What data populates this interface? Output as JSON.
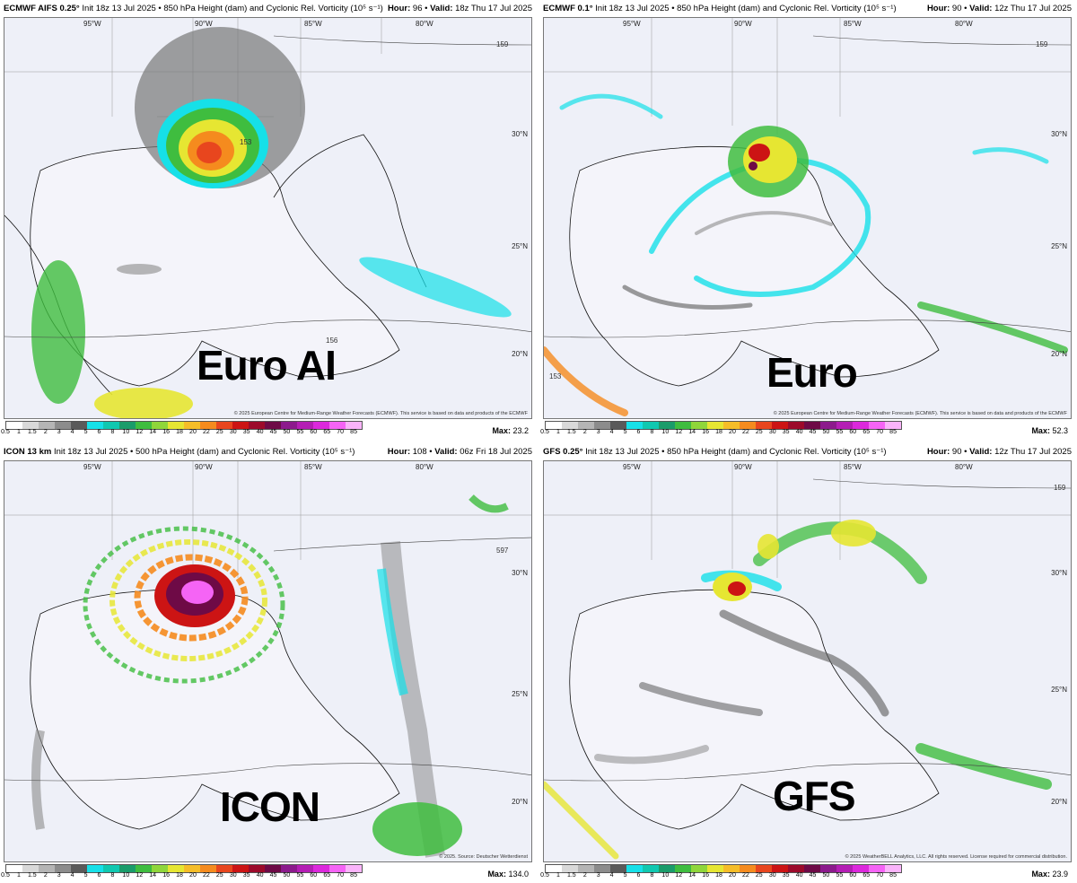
{
  "colors": {
    "land": "#eef0f8",
    "state_lines": "#888888",
    "coast": "#111111",
    "contour": "#444444",
    "colorbar": [
      "#ffffff",
      "#d9d9d9",
      "#b5b5b5",
      "#8c8c8c",
      "#5a5a5a",
      "#16e0e8",
      "#10c8b0",
      "#1a9c6a",
      "#3fbd3f",
      "#8fd63a",
      "#e6e632",
      "#f5bd28",
      "#f58b1e",
      "#e8461e",
      "#cc1414",
      "#9c0a2a",
      "#6e0a46",
      "#8c1a8c",
      "#b41eb4",
      "#dc28dc",
      "#f564f5",
      "#fab4fa"
    ]
  },
  "legend": {
    "ticks": [
      "0.5",
      "1",
      "1.5",
      "2",
      "3",
      "4",
      "5",
      "6",
      "8",
      "10",
      "12",
      "14",
      "16",
      "18",
      "20",
      "22",
      "25",
      "30",
      "35",
      "40",
      "45",
      "50",
      "55",
      "60",
      "65",
      "70",
      "85"
    ]
  },
  "panels": [
    {
      "id": "euro-ai",
      "model": "ECMWF AIFS 0.25°",
      "init_desc": "Init 18z 13 Jul 2025 • 850 hPa Height (dam) and Cyclonic Rel. Vorticity (10⁵ s⁻¹)",
      "hour_label": "Hour:",
      "hour": "96",
      "valid_label": "Valid:",
      "valid": "18z Thu 17 Jul 2025",
      "big_label": "Euro AI",
      "max_label": "Max:",
      "max": "23.2",
      "credit": "© 2025 European Centre for Medium-Range Weather Forecasts (ECMWF). This service is based on data and products of the ECMWF",
      "contours": [
        "159",
        "156",
        "153"
      ],
      "lats": [
        "30°N",
        "25°N",
        "20°N"
      ],
      "lons": [
        "95°W",
        "90°W",
        "85°W",
        "80°W"
      ]
    },
    {
      "id": "euro",
      "model": "ECMWF 0.1°",
      "init_desc": "Init 18z 13 Jul 2025 • 850 hPa Height (dam) and Cyclonic Rel. Vorticity (10⁵ s⁻¹)",
      "hour_label": "Hour:",
      "hour": "90",
      "valid_label": "Valid:",
      "valid": "12z Thu 17 Jul 2025",
      "big_label": "Euro",
      "max_label": "Max:",
      "max": "52.3",
      "credit": "© 2025 European Centre for Medium-Range Weather Forecasts (ECMWF). This service is based on data and products of the ECMWF",
      "contours": [
        "159",
        "153"
      ],
      "lats": [
        "30°N",
        "25°N",
        "20°N"
      ],
      "lons": [
        "95°W",
        "90°W",
        "85°W",
        "80°W"
      ]
    },
    {
      "id": "icon",
      "model": "ICON 13 km",
      "init_desc": "Init 18z 13 Jul 2025 • 500 hPa Height (dam) and Cyclonic Rel. Vorticity (10⁵ s⁻¹)",
      "hour_label": "Hour:",
      "hour": "108",
      "valid_label": "Valid:",
      "valid": "06z Fri 18 Jul 2025",
      "big_label": "ICON",
      "max_label": "Max:",
      "max": "134.0",
      "credit": "© 2025. Source: Deutscher Wetterdienst",
      "contours": [
        "597"
      ],
      "lats": [
        "30°N",
        "25°N",
        "20°N"
      ],
      "lons": [
        "95°W",
        "90°W",
        "85°W",
        "80°W"
      ]
    },
    {
      "id": "gfs",
      "model": "GFS 0.25°",
      "init_desc": "Init 18z 13 Jul 2025 • 850 hPa Height (dam) and Cyclonic Rel. Vorticity (10⁵ s⁻¹)",
      "hour_label": "Hour:",
      "hour": "90",
      "valid_label": "Valid:",
      "valid": "12z Thu 17 Jul 2025",
      "big_label": "GFS",
      "max_label": "Max:",
      "max": "23.9",
      "credit": "© 2025 WeatherBELL Analytics, LLC. All rights reserved. License required for commercial distribution.",
      "contours": [
        "159"
      ],
      "lats": [
        "30°N",
        "25°N",
        "20°N"
      ],
      "lons": [
        "95°W",
        "90°W",
        "85°W",
        "80°W"
      ]
    }
  ]
}
